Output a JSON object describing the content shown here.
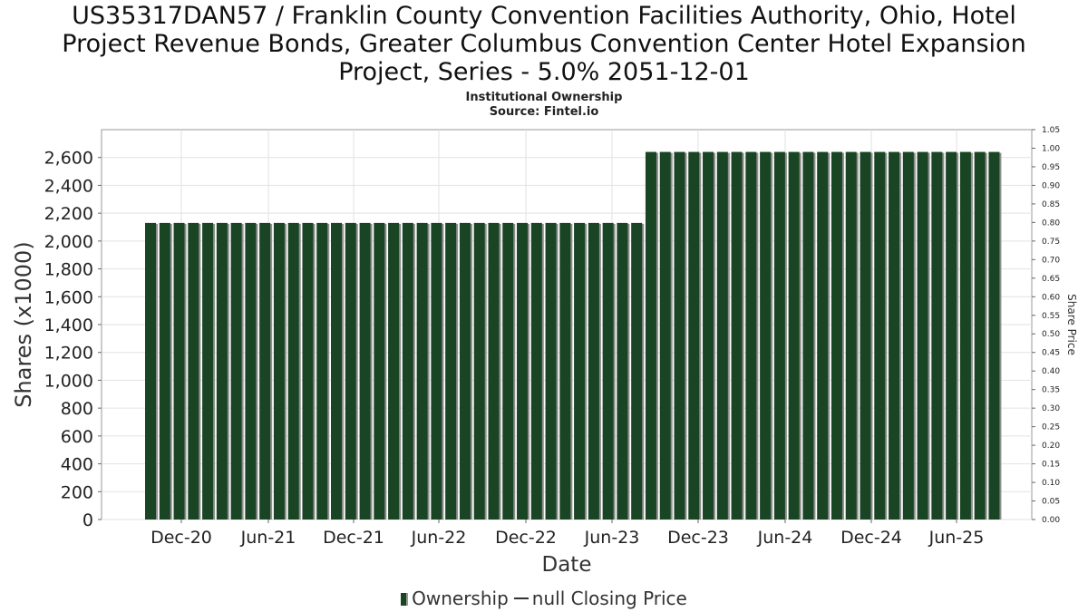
{
  "chart_data": {
    "type": "bar",
    "title_lines": [
      "US35317DAN57 / Franklin County Convention Facilities Authority, Ohio, Hotel",
      "Project Revenue Bonds, Greater Columbus Convention Center Hotel Expansion",
      "Project, Series - 5.0% 2051-12-01"
    ],
    "subtitle_lines": [
      "Institutional Ownership",
      "Source: Fintel.io"
    ],
    "xlabel": "Date",
    "ylabel": "Shares (x1000)",
    "y2label": "Share Price",
    "ylim": [
      0,
      2800
    ],
    "y_ticks": [
      0,
      200,
      400,
      600,
      800,
      1000,
      1200,
      1400,
      1600,
      1800,
      2000,
      2200,
      2400,
      2600
    ],
    "y_tick_labels": [
      "0",
      "200",
      "400",
      "600",
      "800",
      "1,000",
      "1,200",
      "1,400",
      "1,600",
      "1,800",
      "2,000",
      "2,200",
      "2,400",
      "2,600"
    ],
    "y2lim": [
      0,
      1.05
    ],
    "y2_ticks": [
      "0.00",
      "0.05",
      "0.10",
      "0.15",
      "0.20",
      "0.25",
      "0.30",
      "0.35",
      "0.40",
      "0.45",
      "0.50",
      "0.55",
      "0.60",
      "0.65",
      "0.70",
      "0.75",
      "0.80",
      "0.85",
      "0.90",
      "0.95",
      "1.00",
      "1.05"
    ],
    "x_tick_labels": [
      "Dec-20",
      "Jun-21",
      "Dec-21",
      "Jun-22",
      "Dec-22",
      "Jun-23",
      "Dec-23",
      "Jun-24",
      "Dec-24",
      "Jun-25"
    ],
    "grid": true,
    "legend_position": "bottom-center",
    "series": [
      {
        "name": "Ownership",
        "color": "#1a4524",
        "values": [
          2130,
          2130,
          2130,
          2130,
          2130,
          2130,
          2130,
          2130,
          2130,
          2130,
          2130,
          2130,
          2130,
          2130,
          2130,
          2130,
          2130,
          2130,
          2130,
          2130,
          2130,
          2130,
          2130,
          2130,
          2130,
          2130,
          2130,
          2130,
          2130,
          2130,
          2130,
          2130,
          2130,
          2130,
          2130,
          2640,
          2640,
          2640,
          2640,
          2640,
          2640,
          2640,
          2640,
          2640,
          2640,
          2640,
          2640,
          2640,
          2640,
          2640,
          2640,
          2640,
          2640,
          2640,
          2640,
          2640,
          2640,
          2640,
          2640,
          2640
        ]
      }
    ],
    "legend": [
      {
        "label": "Ownership",
        "kind": "bar",
        "color": "#1a4524"
      },
      {
        "label": "null Closing Price",
        "kind": "line",
        "color": "#333333"
      }
    ]
  }
}
